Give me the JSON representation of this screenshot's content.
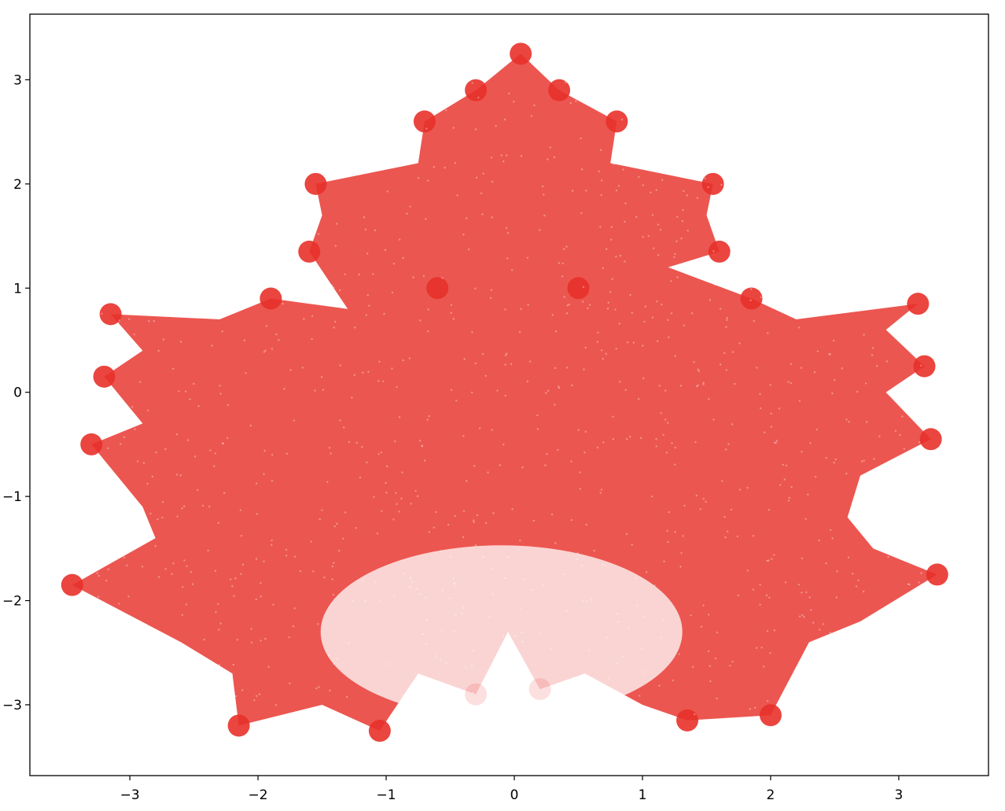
{
  "chart_data": {
    "type": "scatter",
    "title": "",
    "xlabel": "",
    "ylabel": "",
    "xlim": [
      -3.78,
      3.7
    ],
    "ylim": [
      -3.68,
      3.63
    ],
    "x_ticks": [
      -3,
      -2,
      -1,
      0,
      1,
      2,
      3
    ],
    "y_ticks": [
      -3,
      -2,
      -1,
      0,
      1,
      2,
      3
    ],
    "x_tick_labels": [
      "−3",
      "−2",
      "−1",
      "0",
      "1",
      "2",
      "3"
    ],
    "y_tick_labels": [
      "−3",
      "−2",
      "−1",
      "0",
      "1",
      "2",
      "3"
    ],
    "grid": false,
    "legend": "none",
    "point_color": "#e8312a",
    "series": [
      {
        "description_points": "fractal maple-leaf point cloud (chaos-game IFS); dense near outer lobes, sparse near bottom-center stem",
        "values": [
          [
            0.05,
            3.25
          ],
          [
            -0.3,
            2.9
          ],
          [
            0.35,
            2.9
          ],
          [
            -0.7,
            2.6
          ],
          [
            0.8,
            2.6
          ],
          [
            -1.55,
            2.0
          ],
          [
            1.55,
            2.0
          ],
          [
            -1.6,
            1.35
          ],
          [
            1.6,
            1.35
          ],
          [
            -0.6,
            1.0
          ],
          [
            0.5,
            1.0
          ],
          [
            -3.15,
            0.75
          ],
          [
            3.15,
            0.85
          ],
          [
            -1.9,
            0.9
          ],
          [
            1.85,
            0.9
          ],
          [
            -3.2,
            0.15
          ],
          [
            3.2,
            0.25
          ],
          [
            -3.3,
            -0.5
          ],
          [
            3.25,
            -0.45
          ],
          [
            -3.45,
            -1.85
          ],
          [
            3.3,
            -1.75
          ],
          [
            -2.15,
            -3.2
          ],
          [
            2.0,
            -3.1
          ],
          [
            -1.05,
            -3.25
          ],
          [
            1.35,
            -3.15
          ],
          [
            -0.3,
            -2.9
          ],
          [
            0.2,
            -2.85
          ]
        ]
      }
    ]
  }
}
